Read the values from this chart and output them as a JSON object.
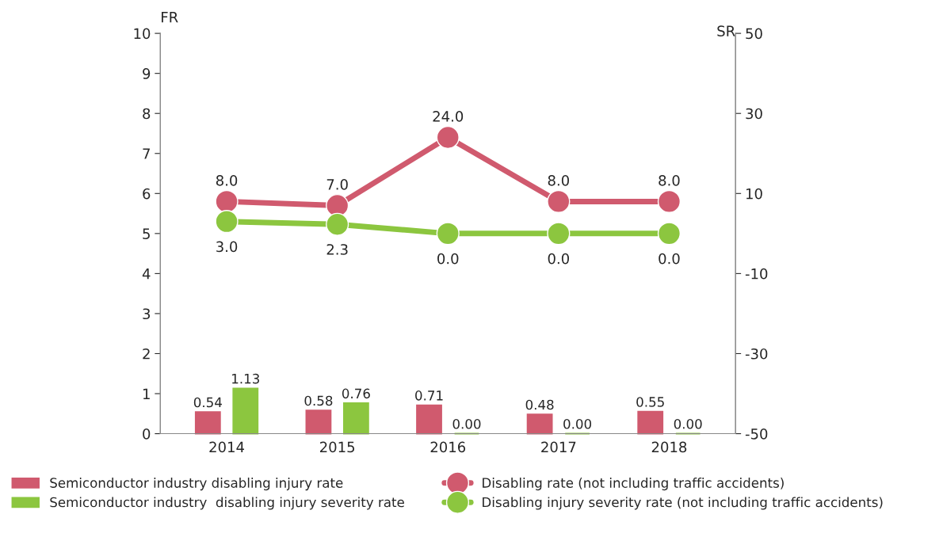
{
  "chart_data": {
    "type": "bar",
    "categories": [
      "2014",
      "2015",
      "2016",
      "2017",
      "2018"
    ],
    "ylabel": "FR",
    "y2label": "SR",
    "ylim": [
      0,
      10
    ],
    "yticks": [
      0,
      1,
      2,
      3,
      4,
      5,
      6,
      7,
      8,
      9,
      10
    ],
    "y2lim": [
      -50,
      50
    ],
    "y2ticks": [
      -50,
      -30,
      -10,
      10,
      30,
      50
    ],
    "series": [
      {
        "name": "Semiconductor industry disabling injury rate",
        "color": "#d05a6e",
        "values": [
          0.54,
          0.58,
          0.71,
          0.48,
          0.55
        ],
        "value_labels": [
          "0.54",
          "0.58",
          "0.71",
          "0.48",
          "0.55"
        ]
      },
      {
        "name": "Semiconductor industry  disabling injury severity rate",
        "color": "#8cc63f",
        "values": [
          1.13,
          0.76,
          0.0,
          0.0,
          0.0
        ],
        "value_labels": [
          "1.13",
          "0.76",
          "0.00",
          "0.00",
          "0.00"
        ]
      },
      {
        "name": "Disabling rate (not including traffic accidents)",
        "type": "line",
        "axis": "y2",
        "color": "#d05a6e",
        "values": [
          8.0,
          7.0,
          24.0,
          8.0,
          8.0
        ],
        "value_labels": [
          "8.0",
          "7.0",
          "24.0",
          "8.0",
          "8.0"
        ]
      },
      {
        "name": "Disabling injury severity rate (not including traffic accidents)",
        "type": "line",
        "axis": "y2",
        "color": "#8cc63f",
        "values": [
          3.0,
          2.3,
          0.0,
          0.0,
          0.0
        ],
        "value_labels": [
          "3.0",
          "2.3",
          "0.0",
          "0.0",
          "0.0"
        ]
      }
    ],
    "marker": "circle",
    "grid": false,
    "legend": "bottom"
  }
}
